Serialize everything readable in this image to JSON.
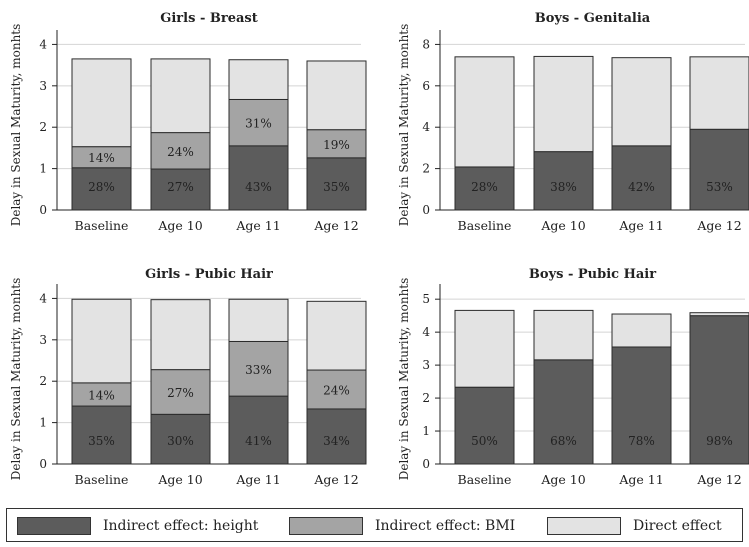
{
  "chart_data": [
    {
      "type": "bar",
      "stacked": true,
      "title": "Girls - Breast",
      "ylabel": "Delay in Sexual Maturity, monhts",
      "categories": [
        "Baseline",
        "Age 10",
        "Age 11",
        "Age 12"
      ],
      "ylim": [
        0,
        4.3
      ],
      "yticks": [
        "0",
        "1",
        "2",
        "3",
        "4"
      ],
      "series": [
        {
          "name": "Indirect effect: height",
          "values": [
            1.02,
            0.99,
            1.55,
            1.26
          ],
          "labels": [
            "28%",
            "27%",
            "43%",
            "35%"
          ]
        },
        {
          "name": "Indirect effect: BMI",
          "values": [
            0.51,
            0.88,
            1.12,
            0.68
          ],
          "labels": [
            "14%",
            "24%",
            "31%",
            "19%"
          ]
        },
        {
          "name": "Direct effect",
          "values": [
            2.12,
            1.78,
            0.96,
            1.66
          ],
          "labels": [
            "",
            "",
            "",
            ""
          ]
        }
      ],
      "grid": true
    },
    {
      "type": "bar",
      "stacked": true,
      "title": "Boys - Genitalia",
      "ylabel": "Delay in Sexual Maturity, monhts",
      "categories": [
        "Baseline",
        "Age 10",
        "Age 11",
        "Age 12"
      ],
      "ylim": [
        0,
        8.6
      ],
      "yticks": [
        "0",
        "2",
        "4",
        "6",
        "8"
      ],
      "series": [
        {
          "name": "Indirect effect: height",
          "values": [
            2.08,
            2.82,
            3.1,
            3.9
          ],
          "labels": [
            "28%",
            "38%",
            "42%",
            "53%"
          ]
        },
        {
          "name": "Indirect effect: BMI",
          "values": [
            0,
            0,
            0,
            0
          ],
          "labels": [
            "",
            "",
            "",
            ""
          ]
        },
        {
          "name": "Direct effect",
          "values": [
            5.32,
            4.6,
            4.26,
            3.5
          ],
          "labels": [
            "",
            "",
            "",
            ""
          ]
        }
      ],
      "grid": true
    },
    {
      "type": "bar",
      "stacked": true,
      "title": "Girls - Pubic Hair",
      "ylabel": "Delay in Sexual Maturity, monhts",
      "categories": [
        "Baseline",
        "Age 10",
        "Age 11",
        "Age 12"
      ],
      "ylim": [
        0,
        4.3
      ],
      "yticks": [
        "0",
        "1",
        "2",
        "3",
        "4"
      ],
      "series": [
        {
          "name": "Indirect effect: height",
          "values": [
            1.4,
            1.2,
            1.64,
            1.33
          ],
          "labels": [
            "35%",
            "30%",
            "41%",
            "34%"
          ]
        },
        {
          "name": "Indirect effect: BMI",
          "values": [
            0.56,
            1.08,
            1.32,
            0.94
          ],
          "labels": [
            "14%",
            "27%",
            "33%",
            "24%"
          ]
        },
        {
          "name": "Direct effect",
          "values": [
            2.02,
            1.69,
            1.02,
            1.66
          ],
          "labels": [
            "",
            "",
            "",
            ""
          ]
        }
      ],
      "grid": true
    },
    {
      "type": "bar",
      "stacked": true,
      "title": "Boys - Pubic Hair",
      "ylabel": "Delay in Sexual Maturity, monhts",
      "categories": [
        "Baseline",
        "Age 10",
        "Age 11",
        "Age 12"
      ],
      "ylim": [
        0,
        5.4
      ],
      "yticks": [
        "0",
        "1",
        "2",
        "3",
        "4",
        "5"
      ],
      "series": [
        {
          "name": "Indirect effect: height",
          "values": [
            2.33,
            3.16,
            3.55,
            4.5
          ],
          "labels": [
            "50%",
            "68%",
            "78%",
            "98%"
          ]
        },
        {
          "name": "Indirect effect: BMI",
          "values": [
            0,
            0,
            0,
            0
          ],
          "labels": [
            "",
            "",
            "",
            ""
          ]
        },
        {
          "name": "Direct effect",
          "values": [
            2.33,
            1.5,
            1.0,
            0.09
          ],
          "labels": [
            "",
            "",
            "",
            ""
          ]
        }
      ],
      "grid": true
    }
  ],
  "colors": {
    "height": "#5c5c5c",
    "bmi": "#a4a4a4",
    "direct": "#e3e3e3",
    "outline": "#2b2b2b",
    "grid": "#d4d4d4"
  },
  "legend": {
    "placement": "bottom",
    "items": [
      {
        "label": "Indirect effect: height",
        "color": "#5c5c5c"
      },
      {
        "label": "Indirect effect: BMI",
        "color": "#a4a4a4"
      },
      {
        "label": "Direct effect",
        "color": "#e3e3e3"
      }
    ]
  }
}
